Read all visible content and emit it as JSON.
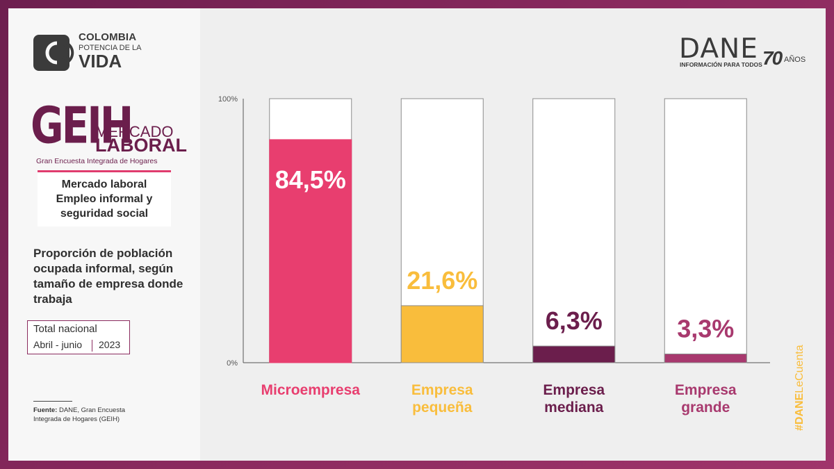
{
  "branding": {
    "colombia_line1": "COLOMBIA",
    "colombia_line2": "POTENCIA DE LA",
    "colombia_line3": "VIDA",
    "geih_big": "GEIH",
    "geih_mercado": "MERCADO",
    "geih_laboral": "LABORAL",
    "geih_sub": "Gran Encuesta Integrada de Hogares",
    "dane": "DANE",
    "dane_sub": "INFORMACIÓN PARA TODOS",
    "dane_70": "70",
    "dane_anos": "AÑOS",
    "hashtag_bold": "#DANE",
    "hashtag_rest": "LeCuenta"
  },
  "sidebar": {
    "topic_lines": [
      "Mercado laboral",
      "Empleo informal y",
      "seguridad social"
    ],
    "chart_title": "Proporción de población ocupada informal, según tamaño de empresa donde trabaja",
    "scope_line1": "Total nacional",
    "scope_period": "Abril - junio",
    "scope_year": "2023",
    "source_label": "Fuente:",
    "source_text": "DANE, Gran Encuesta Integrada de Hogares (GEIH)"
  },
  "colors": {
    "micro": "#e83e6f",
    "pequena": "#f9bd3c",
    "mediana": "#6b1e4c",
    "grande": "#a8396e",
    "brand": "#6b1e4c",
    "hashtag": "#f9bd3c"
  },
  "chart_data": {
    "type": "bar",
    "stacked_to": 100,
    "categories": [
      "Microempresa",
      "Empresa pequeña",
      "Empresa mediana",
      "Empresa grande"
    ],
    "category_lines": [
      [
        "Microempresa"
      ],
      [
        "Empresa",
        "pequeña"
      ],
      [
        "Empresa",
        "mediana"
      ],
      [
        "Empresa",
        "grande"
      ]
    ],
    "values": [
      84.5,
      21.6,
      6.3,
      3.3
    ],
    "value_labels": [
      "84,5%",
      "21,6%",
      "6,3%",
      "3,3%"
    ],
    "ylim": [
      0,
      100
    ],
    "y_ticks": [
      "0%",
      "100%"
    ],
    "grid": false,
    "legend": "none"
  }
}
